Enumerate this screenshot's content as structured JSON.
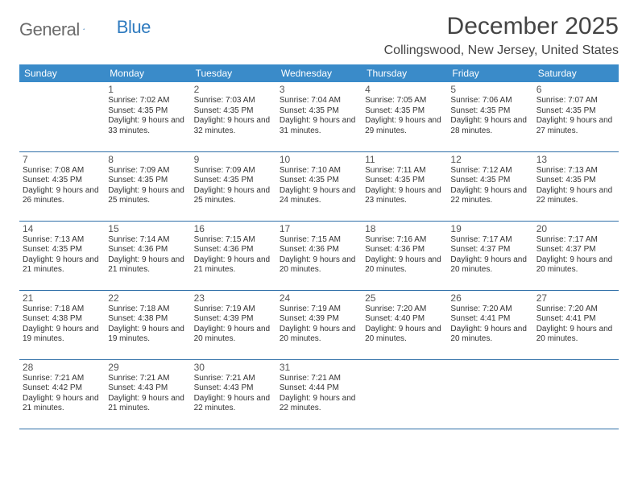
{
  "brand": {
    "text1": "General",
    "text2": "Blue"
  },
  "header": {
    "month_title": "December 2025",
    "location": "Collingswood, New Jersey, United States"
  },
  "colors": {
    "header_bg": "#3a8bc9",
    "header_text": "#ffffff",
    "row_border": "#2f6fa8",
    "body_text": "#333333",
    "daynum_text": "#555555",
    "page_bg": "#ffffff",
    "logo_gray": "#6b6b6b",
    "logo_blue": "#2f7bbf"
  },
  "weekdays": [
    "Sunday",
    "Monday",
    "Tuesday",
    "Wednesday",
    "Thursday",
    "Friday",
    "Saturday"
  ],
  "weeks": [
    [
      null,
      {
        "n": "1",
        "sr": "7:02 AM",
        "ss": "4:35 PM",
        "dl": "9 hours and 33 minutes."
      },
      {
        "n": "2",
        "sr": "7:03 AM",
        "ss": "4:35 PM",
        "dl": "9 hours and 32 minutes."
      },
      {
        "n": "3",
        "sr": "7:04 AM",
        "ss": "4:35 PM",
        "dl": "9 hours and 31 minutes."
      },
      {
        "n": "4",
        "sr": "7:05 AM",
        "ss": "4:35 PM",
        "dl": "9 hours and 29 minutes."
      },
      {
        "n": "5",
        "sr": "7:06 AM",
        "ss": "4:35 PM",
        "dl": "9 hours and 28 minutes."
      },
      {
        "n": "6",
        "sr": "7:07 AM",
        "ss": "4:35 PM",
        "dl": "9 hours and 27 minutes."
      }
    ],
    [
      {
        "n": "7",
        "sr": "7:08 AM",
        "ss": "4:35 PM",
        "dl": "9 hours and 26 minutes."
      },
      {
        "n": "8",
        "sr": "7:09 AM",
        "ss": "4:35 PM",
        "dl": "9 hours and 25 minutes."
      },
      {
        "n": "9",
        "sr": "7:09 AM",
        "ss": "4:35 PM",
        "dl": "9 hours and 25 minutes."
      },
      {
        "n": "10",
        "sr": "7:10 AM",
        "ss": "4:35 PM",
        "dl": "9 hours and 24 minutes."
      },
      {
        "n": "11",
        "sr": "7:11 AM",
        "ss": "4:35 PM",
        "dl": "9 hours and 23 minutes."
      },
      {
        "n": "12",
        "sr": "7:12 AM",
        "ss": "4:35 PM",
        "dl": "9 hours and 22 minutes."
      },
      {
        "n": "13",
        "sr": "7:13 AM",
        "ss": "4:35 PM",
        "dl": "9 hours and 22 minutes."
      }
    ],
    [
      {
        "n": "14",
        "sr": "7:13 AM",
        "ss": "4:35 PM",
        "dl": "9 hours and 21 minutes."
      },
      {
        "n": "15",
        "sr": "7:14 AM",
        "ss": "4:36 PM",
        "dl": "9 hours and 21 minutes."
      },
      {
        "n": "16",
        "sr": "7:15 AM",
        "ss": "4:36 PM",
        "dl": "9 hours and 21 minutes."
      },
      {
        "n": "17",
        "sr": "7:15 AM",
        "ss": "4:36 PM",
        "dl": "9 hours and 20 minutes."
      },
      {
        "n": "18",
        "sr": "7:16 AM",
        "ss": "4:36 PM",
        "dl": "9 hours and 20 minutes."
      },
      {
        "n": "19",
        "sr": "7:17 AM",
        "ss": "4:37 PM",
        "dl": "9 hours and 20 minutes."
      },
      {
        "n": "20",
        "sr": "7:17 AM",
        "ss": "4:37 PM",
        "dl": "9 hours and 20 minutes."
      }
    ],
    [
      {
        "n": "21",
        "sr": "7:18 AM",
        "ss": "4:38 PM",
        "dl": "9 hours and 19 minutes."
      },
      {
        "n": "22",
        "sr": "7:18 AM",
        "ss": "4:38 PM",
        "dl": "9 hours and 19 minutes."
      },
      {
        "n": "23",
        "sr": "7:19 AM",
        "ss": "4:39 PM",
        "dl": "9 hours and 20 minutes."
      },
      {
        "n": "24",
        "sr": "7:19 AM",
        "ss": "4:39 PM",
        "dl": "9 hours and 20 minutes."
      },
      {
        "n": "25",
        "sr": "7:20 AM",
        "ss": "4:40 PM",
        "dl": "9 hours and 20 minutes."
      },
      {
        "n": "26",
        "sr": "7:20 AM",
        "ss": "4:41 PM",
        "dl": "9 hours and 20 minutes."
      },
      {
        "n": "27",
        "sr": "7:20 AM",
        "ss": "4:41 PM",
        "dl": "9 hours and 20 minutes."
      }
    ],
    [
      {
        "n": "28",
        "sr": "7:21 AM",
        "ss": "4:42 PM",
        "dl": "9 hours and 21 minutes."
      },
      {
        "n": "29",
        "sr": "7:21 AM",
        "ss": "4:43 PM",
        "dl": "9 hours and 21 minutes."
      },
      {
        "n": "30",
        "sr": "7:21 AM",
        "ss": "4:43 PM",
        "dl": "9 hours and 22 minutes."
      },
      {
        "n": "31",
        "sr": "7:21 AM",
        "ss": "4:44 PM",
        "dl": "9 hours and 22 minutes."
      },
      null,
      null,
      null
    ]
  ],
  "labels": {
    "sunrise": "Sunrise:",
    "sunset": "Sunset:",
    "daylight": "Daylight:"
  }
}
